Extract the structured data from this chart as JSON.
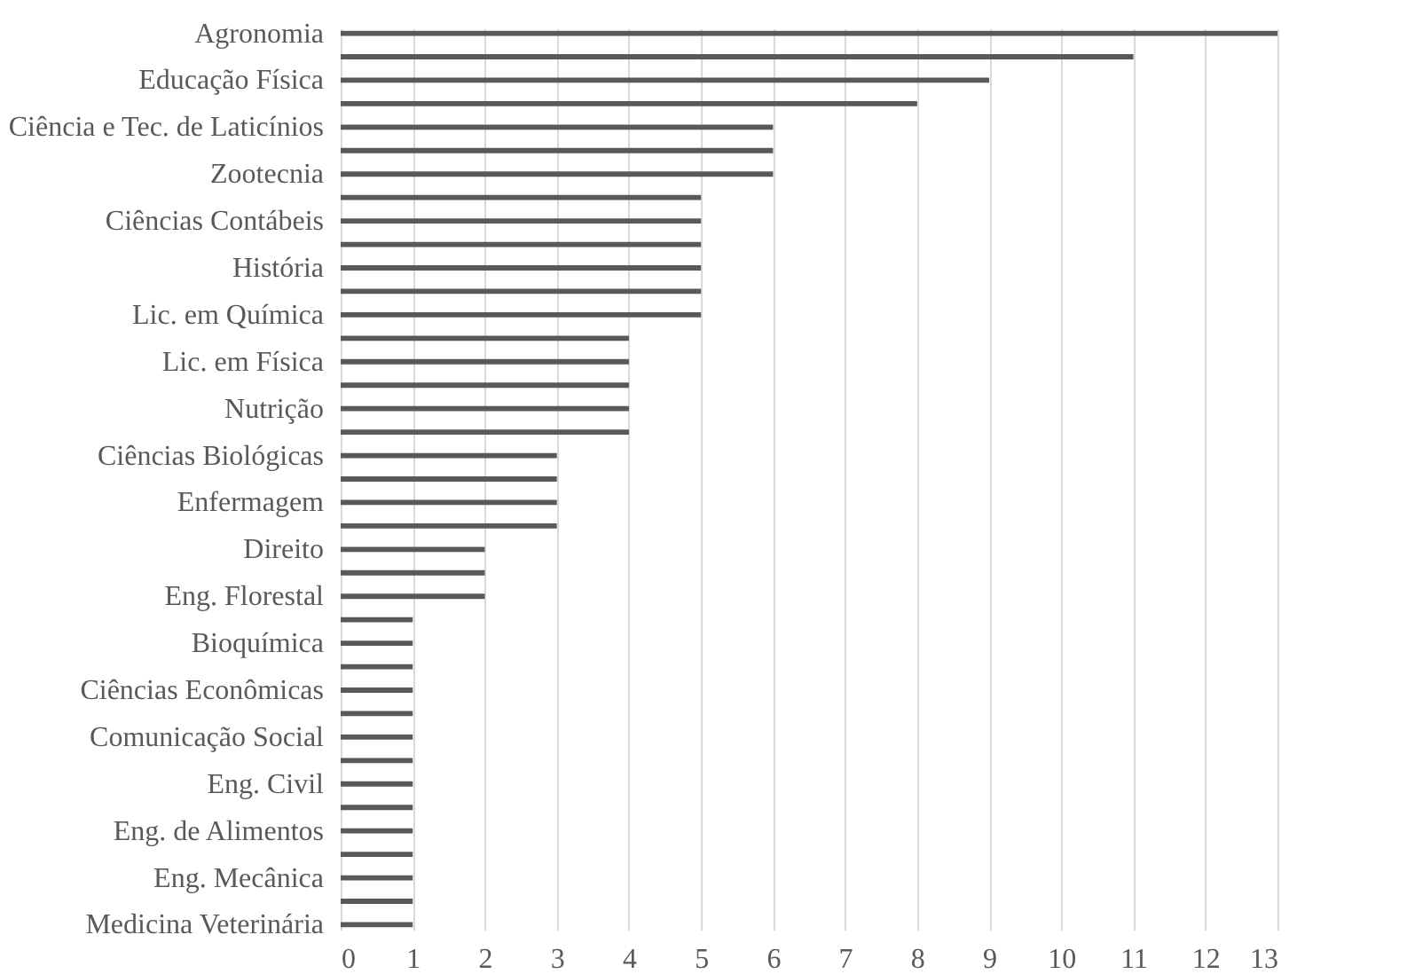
{
  "chart_data": {
    "type": "bar",
    "orientation": "horizontal",
    "categories": [
      "Agronomia",
      null,
      "Educação Física",
      null,
      "Ciência e Tec. de Laticínios",
      null,
      "Zootecnia",
      null,
      "Ciências Contábeis",
      null,
      "História",
      null,
      "Lic. em Química",
      null,
      "Lic. em Física",
      null,
      "Nutrição",
      null,
      "Ciências Biológicas",
      null,
      "Enfermagem",
      null,
      "Direito",
      null,
      "Eng. Florestal",
      null,
      "Bioquímica",
      null,
      "Ciências Econômicas",
      null,
      "Comunicação Social",
      null,
      "Eng. Civil",
      null,
      "Eng. de Alimentos",
      null,
      "Eng. Mecânica",
      null,
      "Medicina Veterinária"
    ],
    "values": [
      13,
      11,
      9,
      8,
      6,
      6,
      6,
      5,
      5,
      5,
      5,
      5,
      5,
      4,
      4,
      4,
      4,
      4,
      3,
      3,
      3,
      3,
      2,
      2,
      2,
      1,
      1,
      1,
      1,
      1,
      1,
      1,
      1,
      1,
      1,
      1,
      1,
      1,
      1
    ],
    "color": "#595959",
    "xlim": [
      0,
      13
    ],
    "xticks": [
      0,
      1,
      2,
      3,
      4,
      5,
      6,
      7,
      8,
      9,
      10,
      11,
      12,
      13
    ],
    "grid": "x"
  }
}
